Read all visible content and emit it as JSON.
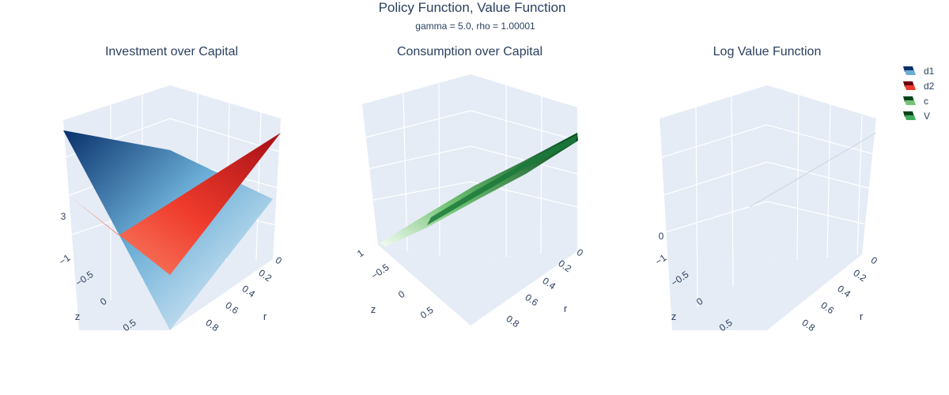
{
  "figure": {
    "title": "Policy Function, Value Function",
    "subtitle": "gamma = 5.0, rho = 1.00001"
  },
  "legend": [
    {
      "label": "d1",
      "colors": [
        "#08306b",
        "#6baed6"
      ]
    },
    {
      "label": "d2",
      "colors": [
        "#67000d",
        "#ef3b2c"
      ]
    },
    {
      "label": "c",
      "colors": [
        "#00441b",
        "#74c476"
      ]
    },
    {
      "label": "V",
      "colors": [
        "#00441b",
        "#41ab5d"
      ]
    }
  ],
  "chart_data": [
    {
      "type": "surface",
      "title": "Investment over Capital",
      "xlabel": "r",
      "ylabel": "z",
      "r_ticks": [
        "0",
        "0.2",
        "0.4",
        "0.6",
        "0.8"
      ],
      "z_ticks": [
        "−1",
        "−0.5",
        "0",
        "0.5"
      ],
      "vertical_tick_partial": "3",
      "series": [
        {
          "name": "d1",
          "colorscale": "Blues"
        },
        {
          "name": "d2",
          "colorscale": "Reds"
        }
      ]
    },
    {
      "type": "surface",
      "title": "Consumption over Capital",
      "xlabel": "r",
      "ylabel": "z",
      "r_ticks": [
        "0",
        "0.2",
        "0.4",
        "0.6",
        "0.8"
      ],
      "z_ticks": [
        "1",
        "−0.5",
        "0",
        "0.5"
      ],
      "series": [
        {
          "name": "c",
          "colorscale": "Greens"
        }
      ]
    },
    {
      "type": "surface",
      "title": "Log Value Function",
      "xlabel": "r",
      "ylabel": "z",
      "r_ticks": [
        "0",
        "0.2",
        "0.4",
        "0.6",
        "0.8"
      ],
      "z_ticks": [
        "−1",
        "−0.5",
        "0",
        "0.5"
      ],
      "vertical_tick_partial": "0",
      "series": [
        {
          "name": "V",
          "colorscale": "Greens"
        }
      ]
    }
  ]
}
